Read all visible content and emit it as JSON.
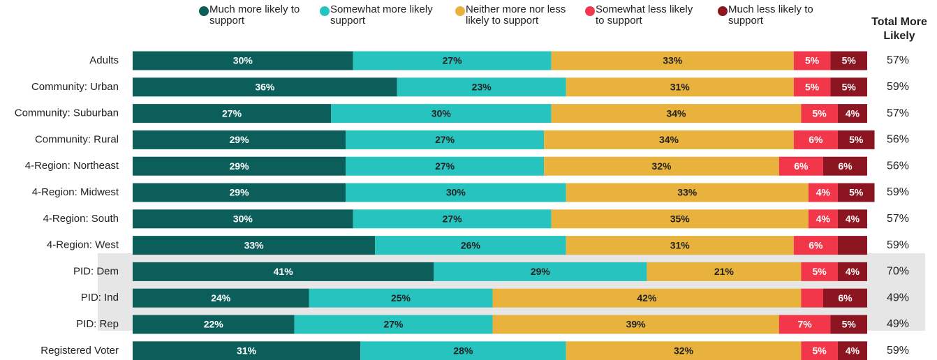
{
  "chart_data": {
    "type": "bar",
    "orientation": "horizontal",
    "stacked": true,
    "categories": [
      "Adults",
      "Community: Urban",
      "Community: Suburban",
      "Community: Rural",
      "4-Region: Northeast",
      "4-Region: Midwest",
      "4-Region: South",
      "4-Region: West",
      "PID: Dem",
      "PID: Ind",
      "PID: Rep",
      "Registered Voter"
    ],
    "xlim": [
      0,
      100
    ],
    "series": [
      {
        "name": "Much more likely to support",
        "color": "#0b5e5a",
        "values": [
          30,
          36,
          27,
          29,
          29,
          29,
          30,
          33,
          41,
          24,
          22,
          31
        ],
        "value_labels": [
          "30%",
          "36%",
          "27%",
          "29%",
          "29%",
          "29%",
          "30%",
          "33%",
          "41%",
          "24%",
          "22%",
          "31%"
        ]
      },
      {
        "name": "Somewhat more likely support",
        "color": "#27c3bf",
        "values": [
          27,
          23,
          30,
          27,
          27,
          30,
          27,
          26,
          29,
          25,
          27,
          28
        ],
        "value_labels": [
          "27%",
          "23%",
          "30%",
          "27%",
          "27%",
          "30%",
          "27%",
          "26%",
          "29%",
          "25%",
          "27%",
          "28%"
        ]
      },
      {
        "name": "Neither more nor less likely to support",
        "color": "#e8b23d",
        "values": [
          33,
          31,
          34,
          34,
          32,
          33,
          35,
          31,
          21,
          42,
          39,
          32
        ],
        "value_labels": [
          "33%",
          "31%",
          "34%",
          "34%",
          "32%",
          "33%",
          "35%",
          "31%",
          "21%",
          "42%",
          "39%",
          "32%"
        ]
      },
      {
        "name": "Somewhat less likely to support",
        "color": "#f2374a",
        "values": [
          5,
          5,
          5,
          6,
          6,
          4,
          4,
          6,
          5,
          3,
          7,
          5
        ],
        "value_labels": [
          "5%",
          "5%",
          "5%",
          "6%",
          "6%",
          "4%",
          "4%",
          "6%",
          "5%",
          null,
          "7%",
          "5%"
        ]
      },
      {
        "name": "Much less likely to support",
        "color": "#8b1520",
        "values": [
          5,
          5,
          4,
          5,
          6,
          5,
          4,
          4,
          4,
          6,
          5,
          4
        ],
        "value_labels": [
          "5%",
          "5%",
          "4%",
          "5%",
          "6%",
          "5%",
          "4%",
          null,
          "4%",
          "6%",
          "5%",
          "4%"
        ]
      }
    ],
    "total": {
      "title": "Total More Likely",
      "values": [
        57,
        59,
        57,
        56,
        56,
        59,
        57,
        59,
        70,
        49,
        49,
        59
      ],
      "value_labels": [
        "57%",
        "59%",
        "57%",
        "56%",
        "56%",
        "59%",
        "57%",
        "59%",
        "70%",
        "49%",
        "49%",
        "59%"
      ]
    }
  }
}
